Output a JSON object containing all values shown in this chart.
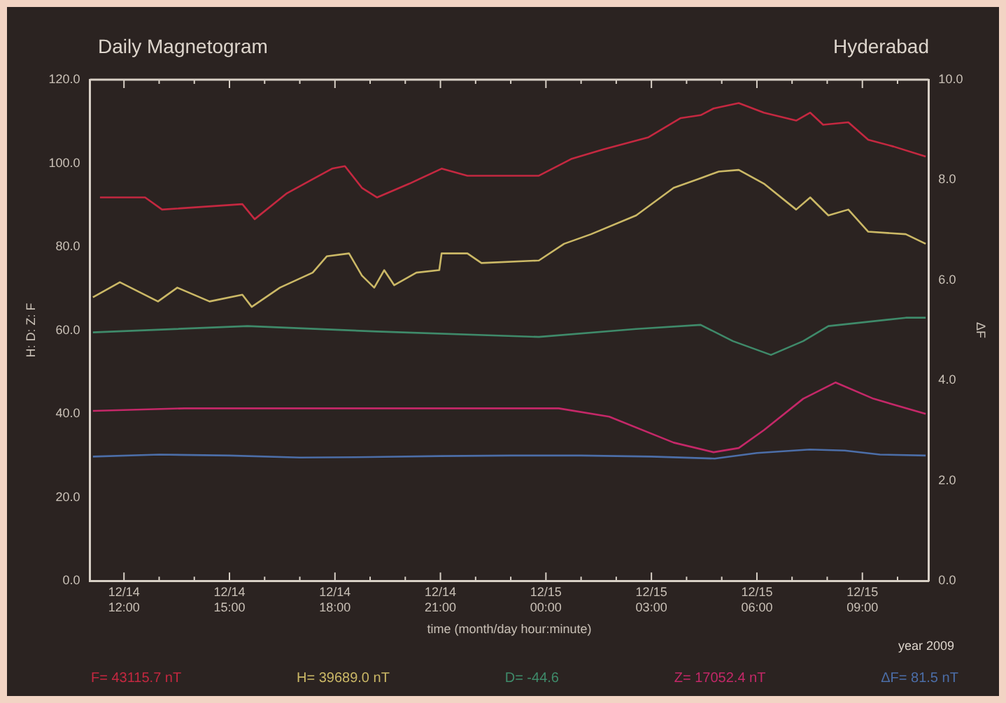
{
  "chart_data": {
    "type": "line",
    "title": "Daily Magnetogram",
    "xlabel": "time (month/day hour:minute)",
    "ylabel": "H: D: Z: F",
    "y2label": "ΔF",
    "annotations": [
      "Hyderabad",
      "year 2009"
    ],
    "xlim": [
      "2009-12-14T11:02",
      "2009-12-15T10:53"
    ],
    "xticks": [
      {
        "value": "2009-12-14T12:00",
        "label": "12/14\n12:00"
      },
      {
        "value": "2009-12-14T13:00",
        "label": null
      },
      {
        "value": "2009-12-14T14:00",
        "label": null
      },
      {
        "value": "2009-12-14T15:00",
        "label": "12/14\n15:00"
      },
      {
        "value": "2009-12-14T16:00",
        "label": null
      },
      {
        "value": "2009-12-14T17:00",
        "label": null
      },
      {
        "value": "2009-12-14T18:00",
        "label": "12/14\n18:00"
      },
      {
        "value": "2009-12-14T19:00",
        "label": null
      },
      {
        "value": "2009-12-14T20:00",
        "label": null
      },
      {
        "value": "2009-12-14T21:00",
        "label": "12/14\n21:00"
      },
      {
        "value": "2009-12-14T22:00",
        "label": null
      },
      {
        "value": "2009-12-14T23:00",
        "label": null
      },
      {
        "value": "2009-12-15T00:00",
        "label": "12/15\n00:00"
      },
      {
        "value": "2009-12-15T01:00",
        "label": null
      },
      {
        "value": "2009-12-15T02:00",
        "label": null
      },
      {
        "value": "2009-12-15T03:00",
        "label": "12/15\n03:00"
      },
      {
        "value": "2009-12-15T04:00",
        "label": null
      },
      {
        "value": "2009-12-15T05:00",
        "label": null
      },
      {
        "value": "2009-12-15T06:00",
        "label": "12/15\n06:00"
      },
      {
        "value": "2009-12-15T07:00",
        "label": null
      },
      {
        "value": "2009-12-15T08:00",
        "label": null
      },
      {
        "value": "2009-12-15T09:00",
        "label": "12/15\n09:00"
      },
      {
        "value": "2009-12-15T10:00",
        "label": null
      }
    ],
    "ylim": [
      0,
      120
    ],
    "yticks": [
      {
        "value": 0,
        "label": "0.0"
      },
      {
        "value": 20,
        "label": "20.0"
      },
      {
        "value": 40,
        "label": "40.0"
      },
      {
        "value": 60,
        "label": "60.0"
      },
      {
        "value": 80,
        "label": "80.0"
      },
      {
        "value": 100,
        "label": "100.0"
      },
      {
        "value": 120,
        "label": "120.0"
      }
    ],
    "y2lim": [
      0,
      10
    ],
    "y2ticks": [
      {
        "value": 0,
        "label": "0.0"
      },
      {
        "value": 2,
        "label": "2.0"
      },
      {
        "value": 4,
        "label": "4.0"
      },
      {
        "value": 6,
        "label": "6.0"
      },
      {
        "value": 8,
        "label": "8.0"
      },
      {
        "value": 10,
        "label": "10.0"
      }
    ],
    "grid": false,
    "legend": "bottom",
    "marker": "none",
    "line_style": "solid",
    "series": [
      {
        "name": "F= 43115.7 nT",
        "color": "#c42840",
        "x": [
          "2009-12-14T11:19",
          "2009-12-14T12:36",
          "2009-12-14T13:05",
          "2009-12-14T15:22",
          "2009-12-14T15:43",
          "2009-12-14T16:38",
          "2009-12-14T17:55",
          "2009-12-14T18:17",
          "2009-12-14T18:46",
          "2009-12-14T19:12",
          "2009-12-14T20:07",
          "2009-12-14T21:02",
          "2009-12-14T21:46",
          "2009-12-14T23:48",
          "2009-12-15T00:43",
          "2009-12-15T01:38",
          "2009-12-15T02:55",
          "2009-12-15T03:50",
          "2009-12-15T04:24",
          "2009-12-15T04:46",
          "2009-12-15T05:29",
          "2009-12-15T06:12",
          "2009-12-15T07:07",
          "2009-12-15T07:31",
          "2009-12-15T07:53",
          "2009-12-15T08:36",
          "2009-12-15T09:10",
          "2009-12-15T09:53",
          "2009-12-15T10:48"
        ],
        "values": [
          91.8,
          91.8,
          88.9,
          90.2,
          86.6,
          92.8,
          98.7,
          99.3,
          94.1,
          91.8,
          95.1,
          98.7,
          97.0,
          97.0,
          101.0,
          103.3,
          106.2,
          110.8,
          111.5,
          113.1,
          114.4,
          112.1,
          110.2,
          112.1,
          109.2,
          109.8,
          105.6,
          104.0,
          101.6
        ]
      },
      {
        "name": "H= 39689.0 nT",
        "color": "#cbb866",
        "x": [
          "2009-12-14T11:07",
          "2009-12-14T11:53",
          "2009-12-14T12:58",
          "2009-12-14T13:31",
          "2009-12-14T14:26",
          "2009-12-14T15:22",
          "2009-12-14T15:38",
          "2009-12-14T16:26",
          "2009-12-14T17:22",
          "2009-12-14T17:46",
          "2009-12-14T18:24",
          "2009-12-14T18:46",
          "2009-12-14T19:07",
          "2009-12-14T19:24",
          "2009-12-14T19:41",
          "2009-12-14T20:19",
          "2009-12-14T20:58",
          "2009-12-14T21:02",
          "2009-12-14T21:46",
          "2009-12-14T22:10",
          "2009-12-14T23:48",
          "2009-12-15T00:31",
          "2009-12-15T01:17",
          "2009-12-15T02:34",
          "2009-12-15T03:38",
          "2009-12-15T04:24",
          "2009-12-15T04:55",
          "2009-12-15T05:29",
          "2009-12-15T06:12",
          "2009-12-15T07:07",
          "2009-12-15T07:31",
          "2009-12-15T08:02",
          "2009-12-15T08:36",
          "2009-12-15T09:10",
          "2009-12-15T10:14",
          "2009-12-15T10:48"
        ],
        "values": [
          67.9,
          71.5,
          66.9,
          70.2,
          66.9,
          68.5,
          65.6,
          70.2,
          73.8,
          77.7,
          78.4,
          73.1,
          70.2,
          74.4,
          70.8,
          73.8,
          74.4,
          78.4,
          78.4,
          76.1,
          76.7,
          80.7,
          83.0,
          87.5,
          94.1,
          96.4,
          98.0,
          98.4,
          95.1,
          88.9,
          91.8,
          87.5,
          88.9,
          83.6,
          83.0,
          80.7
        ]
      },
      {
        "name": "D= -44.6",
        "color": "#3f8a6a",
        "x": [
          "2009-12-14T11:07",
          "2009-12-14T15:31",
          "2009-12-14T19:12",
          "2009-12-14T23:48",
          "2009-12-15T02:34",
          "2009-12-15T04:24",
          "2009-12-15T05:19",
          "2009-12-15T06:24",
          "2009-12-15T07:19",
          "2009-12-15T08:02",
          "2009-12-15T10:14",
          "2009-12-15T10:48"
        ],
        "values": [
          59.5,
          61.0,
          59.7,
          58.4,
          60.3,
          61.3,
          57.4,
          54.1,
          57.4,
          61.0,
          63.0,
          63.0
        ]
      },
      {
        "name": "Z= 17052.4 nT",
        "color": "#c42868",
        "x": [
          "2009-12-14T11:07",
          "2009-12-14T13:43",
          "2009-12-15T00:22",
          "2009-12-15T01:48",
          "2009-12-15T03:38",
          "2009-12-15T04:46",
          "2009-12-15T05:29",
          "2009-12-15T06:12",
          "2009-12-15T07:19",
          "2009-12-15T08:14",
          "2009-12-15T09:19",
          "2009-12-15T10:48"
        ],
        "values": [
          40.7,
          41.3,
          41.3,
          39.3,
          33.1,
          30.8,
          31.8,
          36.1,
          43.6,
          47.5,
          43.6,
          40.0
        ]
      },
      {
        "name": "ΔF= 81.5 nT",
        "color": "#4c6ea8",
        "axis": "y2",
        "x": [
          "2009-12-14T11:07",
          "2009-12-14T13:00",
          "2009-12-14T15:00",
          "2009-12-14T17:00",
          "2009-12-14T19:00",
          "2009-12-14T21:00",
          "2009-12-14T23:00",
          "2009-12-15T01:00",
          "2009-12-15T03:00",
          "2009-12-15T04:48",
          "2009-12-15T06:00",
          "2009-12-15T07:30",
          "2009-12-15T08:30",
          "2009-12-15T09:30",
          "2009-12-15T10:48"
        ],
        "values": [
          2.48,
          2.52,
          2.5,
          2.46,
          2.47,
          2.49,
          2.5,
          2.5,
          2.48,
          2.44,
          2.55,
          2.62,
          2.6,
          2.52,
          2.5
        ]
      }
    ]
  }
}
